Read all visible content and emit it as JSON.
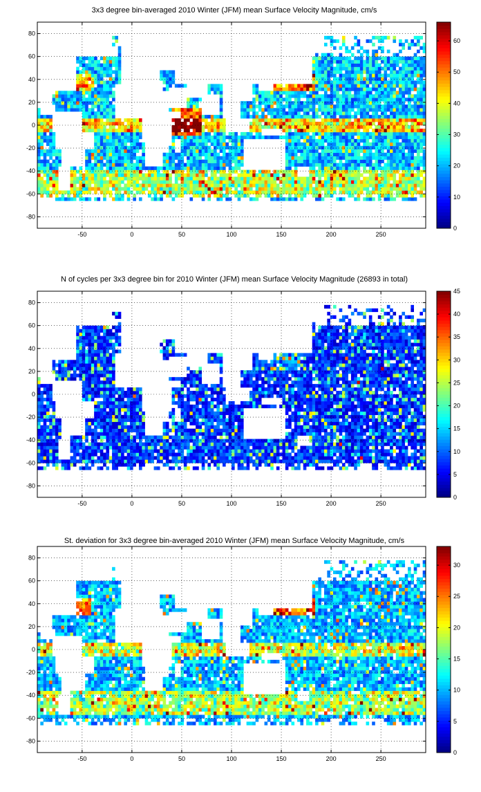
{
  "chart_data": [
    {
      "type": "heatmap",
      "title": "3x3 degree bin-averaged 2010 Winter (JFM) mean Surface Velocity Magnitude, cm/s",
      "xlabel": "",
      "ylabel": "",
      "xlim": [
        -95,
        295
      ],
      "ylim": [
        -90,
        90
      ],
      "xticks": [
        -50,
        0,
        50,
        100,
        150,
        200,
        250
      ],
      "yticks": [
        -80,
        -60,
        -40,
        -20,
        0,
        20,
        40,
        60,
        80
      ],
      "colorbar": {
        "min": 0,
        "max": 66,
        "ticks": [
          0,
          10,
          20,
          30,
          40,
          50,
          60
        ]
      },
      "grid": true,
      "bin_deg": 3,
      "pattern": "speed",
      "seed": 11
    },
    {
      "type": "heatmap",
      "title": "N of cycles per 3x3 degree bin for 2010 Winter (JFM) mean Surface Velocity Magnitude (26893 in total)",
      "xlabel": "",
      "ylabel": "",
      "xlim": [
        -95,
        295
      ],
      "ylim": [
        -90,
        90
      ],
      "xticks": [
        -50,
        0,
        50,
        100,
        150,
        200,
        250
      ],
      "yticks": [
        -80,
        -60,
        -40,
        -20,
        0,
        20,
        40,
        60,
        80
      ],
      "colorbar": {
        "min": 0,
        "max": 45,
        "ticks": [
          0,
          5,
          10,
          15,
          20,
          25,
          30,
          35,
          40,
          45
        ]
      },
      "grid": true,
      "bin_deg": 3,
      "pattern": "count",
      "seed": 29
    },
    {
      "type": "heatmap",
      "title": "St. deviation for 3x3 degree bin-averaged 2010 Winter (JFM) mean Surface Velocity Magnitude, cm/s",
      "xlabel": "",
      "ylabel": "",
      "xlim": [
        -95,
        295
      ],
      "ylim": [
        -90,
        90
      ],
      "xticks": [
        -50,
        0,
        50,
        100,
        150,
        200,
        250
      ],
      "yticks": [
        -80,
        -60,
        -40,
        -20,
        0,
        20,
        40,
        60,
        80
      ],
      "colorbar": {
        "min": 0,
        "max": 33,
        "ticks": [
          0,
          5,
          10,
          15,
          20,
          25,
          30
        ]
      },
      "grid": true,
      "bin_deg": 3,
      "pattern": "std",
      "seed": 47
    }
  ]
}
